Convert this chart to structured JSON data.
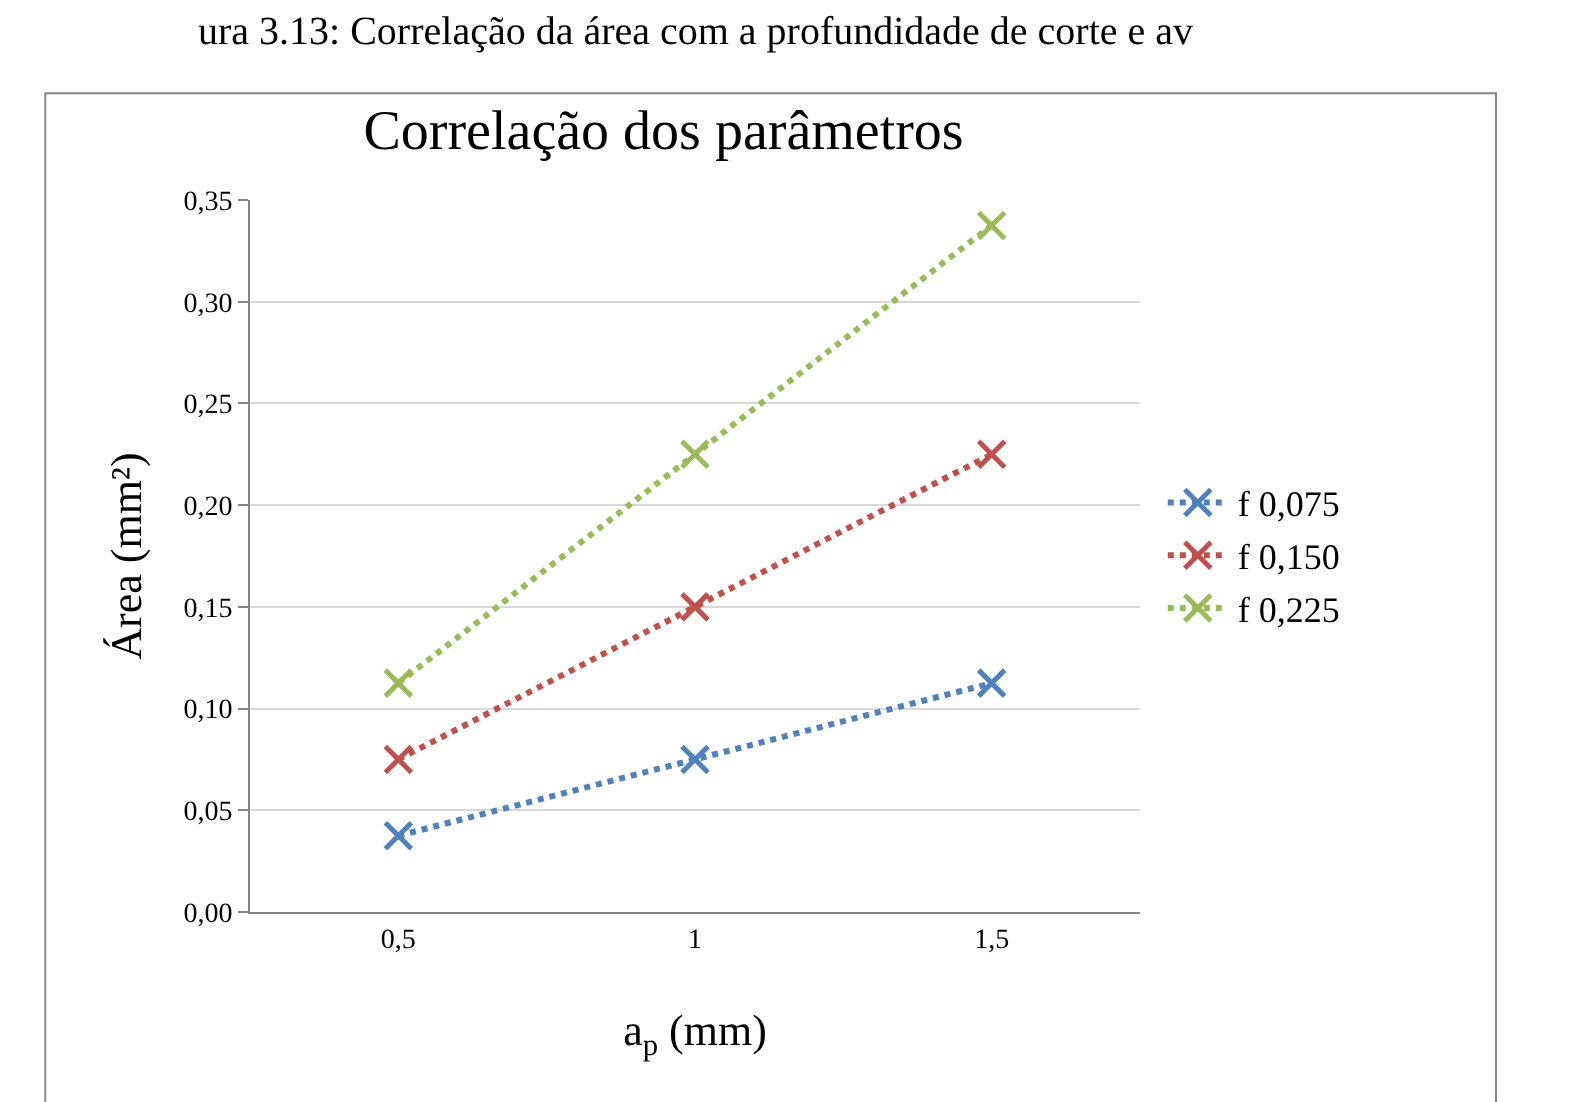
{
  "chart_data": {
    "type": "line",
    "title": "Correlação dos parâmetros",
    "annotations": [
      "ura 3.13: Correlação da área com a profundidade de corte e av"
    ],
    "xlabel": "a$_{p}$ (mm)",
    "ylabel": "Área (mm²)",
    "categories": [
      "0,5",
      "1",
      "1,5"
    ],
    "series": [
      {
        "name": "f 0,075",
        "color": "#4f81bd",
        "values": [
          0.0375,
          0.075,
          0.1125
        ]
      },
      {
        "name": "f 0,150",
        "color": "#c0504d",
        "values": [
          0.075,
          0.15,
          0.225
        ]
      },
      {
        "name": "f 0,225",
        "color": "#9bbb59",
        "values": [
          0.1125,
          0.225,
          0.3375
        ]
      }
    ],
    "ylim": [
      0,
      0.35
    ],
    "yticks": [
      {
        "value": 0,
        "label": "0,00"
      },
      {
        "value": 0.05,
        "label": "0,05"
      },
      {
        "value": 0.1,
        "label": "0,10"
      },
      {
        "value": 0.15,
        "label": "0,15"
      },
      {
        "value": 0.2,
        "label": "0,20"
      },
      {
        "value": 0.25,
        "label": "0,25"
      },
      {
        "value": 0.3,
        "label": "0,30"
      },
      {
        "value": 0.35,
        "label": "0,35"
      }
    ],
    "grid": "y",
    "legend": "right",
    "marker": "cross",
    "line_style": "dotted"
  }
}
